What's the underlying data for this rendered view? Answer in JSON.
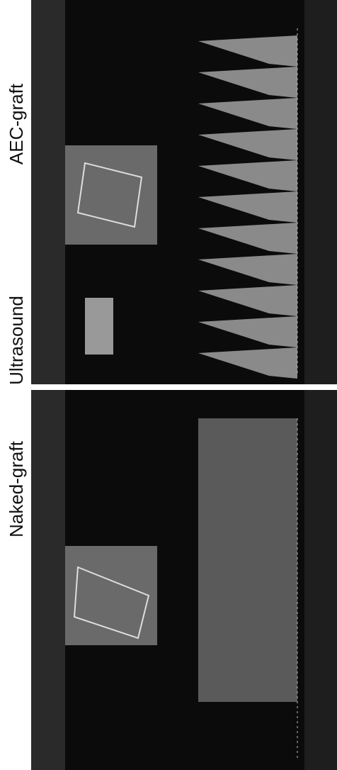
{
  "labels": {
    "naked": "Naked-graft",
    "ultrasound": "Ultrasound",
    "aec": "AEC-graft"
  }
}
